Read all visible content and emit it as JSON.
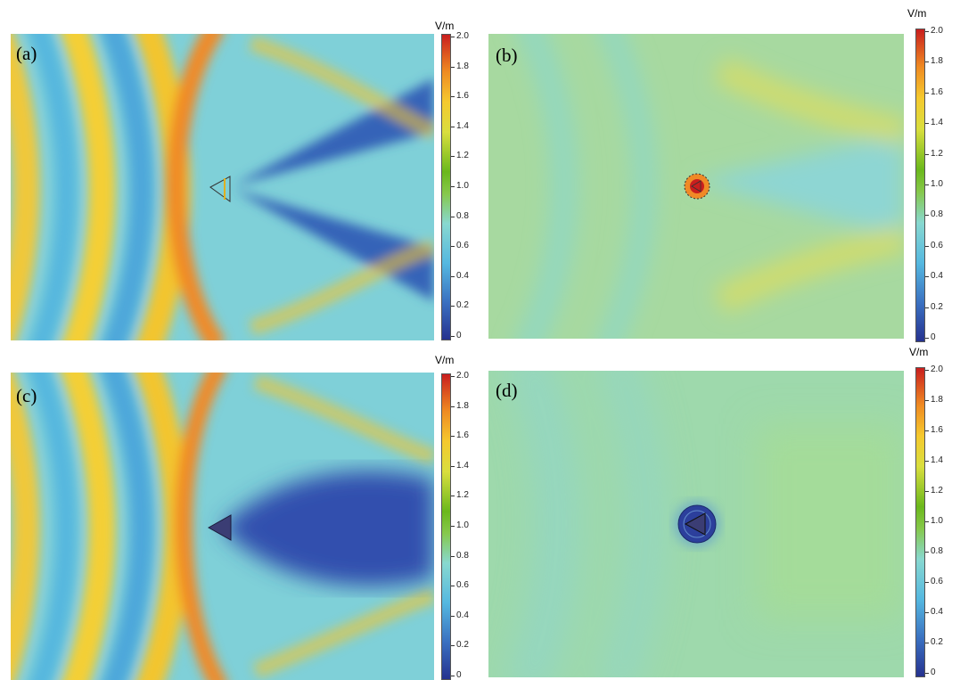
{
  "colors": {
    "scale": [
      "#2b3c9a",
      "#3a78c4",
      "#5cc3dd",
      "#8fd9c7",
      "#9fd37a",
      "#6fba1e",
      "#dde04a",
      "#f2c230",
      "#f08a25",
      "#d4281c"
    ],
    "object_fill": "#3b3d74"
  },
  "panels": [
    {
      "label": "(a)",
      "description_icon": "triangle-scatterer-outline-icon",
      "colorbar": {
        "unit": "V/m",
        "ticks": [
          "2.0",
          "1.8",
          "1.6",
          "1.4",
          "1.2",
          "1.0",
          "0.8",
          "0.6",
          "0.4",
          "0.2",
          "0"
        ]
      }
    },
    {
      "label": "(b)",
      "description_icon": "cloaked-triangle-ring-icon",
      "colorbar": {
        "unit": "V/m",
        "ticks": [
          "2.0",
          "1.8",
          "1.6",
          "1.4",
          "1.2",
          "1.0",
          "0.8",
          "0.6",
          "0.4",
          "0.2",
          "0"
        ]
      }
    },
    {
      "label": "(c)",
      "description_icon": "triangle-scatterer-filled-icon",
      "colorbar": {
        "unit": "V/m",
        "ticks": [
          "2.0",
          "1.8",
          "1.6",
          "1.4",
          "1.2",
          "1.0",
          "0.8",
          "0.6",
          "0.4",
          "0.2",
          "0"
        ]
      }
    },
    {
      "label": "(d)",
      "description_icon": "cloaked-triangle-disk-icon",
      "colorbar": {
        "unit": "V/m",
        "ticks": [
          "2.0",
          "1.8",
          "1.6",
          "1.4",
          "1.2",
          "1.0",
          "0.8",
          "0.6",
          "0.4",
          "0.2",
          "0"
        ]
      }
    }
  ]
}
